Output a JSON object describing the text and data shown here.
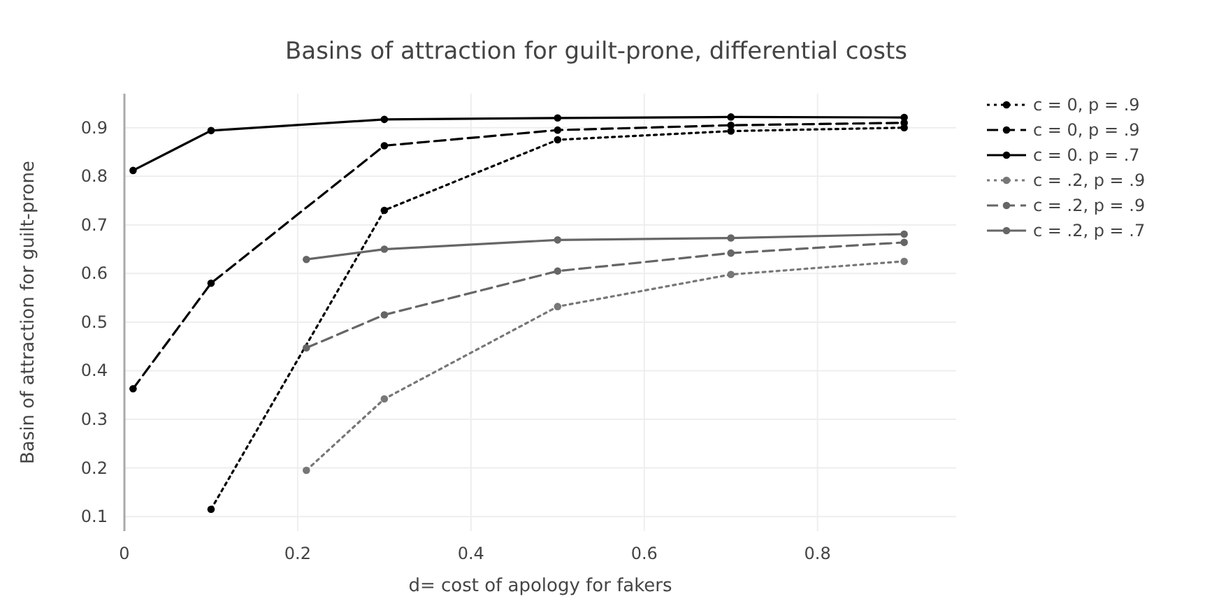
{
  "chart_data": {
    "type": "line",
    "title": "Basins of attraction for guilt-prone, differential costs",
    "xlabel": "d= cost of apology for fakers",
    "ylabel": "Basin of attraction for guilt-prone",
    "xlim": [
      0,
      0.96
    ],
    "xticks": [
      {
        "value": 0,
        "label": "0"
      },
      {
        "value": 0.2,
        "label": "0.2"
      },
      {
        "value": 0.4,
        "label": "0.4"
      },
      {
        "value": 0.6,
        "label": "0.6"
      },
      {
        "value": 0.8,
        "label": "0.8"
      }
    ],
    "ylim": [
      0.07,
      0.97
    ],
    "yticks": [
      {
        "value": 0.1,
        "label": "0.1"
      },
      {
        "value": 0.2,
        "label": "0.2"
      },
      {
        "value": 0.3,
        "label": "0.3"
      },
      {
        "value": 0.4,
        "label": "0.4"
      },
      {
        "value": 0.5,
        "label": "0.5"
      },
      {
        "value": 0.6,
        "label": "0.6"
      },
      {
        "value": 0.7,
        "label": "0.7"
      },
      {
        "value": 0.8,
        "label": "0.8"
      },
      {
        "value": 0.9,
        "label": "0.9"
      }
    ],
    "grid": true,
    "legend": "top right",
    "marker": "circle",
    "series": [
      {
        "name": "c = 0, p = .9",
        "color": "#000000",
        "line_style": "dotted",
        "x": [
          0.1,
          0.3,
          0.5,
          0.7,
          0.9
        ],
        "values": [
          0.115,
          0.73,
          0.875,
          0.893,
          0.9
        ]
      },
      {
        "name": "c = 0, p = .9",
        "color": "#000000",
        "line_style": "dashed",
        "x": [
          0.01,
          0.1,
          0.3,
          0.5,
          0.7,
          0.9
        ],
        "values": [
          0.363,
          0.58,
          0.863,
          0.895,
          0.905,
          0.91
        ]
      },
      {
        "name": "c = 0. p = .7",
        "color": "#000000",
        "line_style": "solid",
        "x": [
          0.01,
          0.1,
          0.3,
          0.5,
          0.7,
          0.9
        ],
        "values": [
          0.812,
          0.894,
          0.917,
          0.92,
          0.922,
          0.921
        ]
      },
      {
        "name": "c = .2, p = .9",
        "color": "#777777",
        "line_style": "dotted",
        "x": [
          0.21,
          0.3,
          0.5,
          0.7,
          0.9
        ],
        "values": [
          0.195,
          0.342,
          0.532,
          0.598,
          0.625
        ]
      },
      {
        "name": "c = .2, p = .9",
        "color": "#666666",
        "line_style": "dashed",
        "x": [
          0.21,
          0.3,
          0.5,
          0.7,
          0.9
        ],
        "values": [
          0.447,
          0.515,
          0.605,
          0.642,
          0.664
        ]
      },
      {
        "name": "c = .2, p = .7",
        "color": "#666666",
        "line_style": "solid",
        "x": [
          0.21,
          0.3,
          0.5,
          0.7,
          0.9
        ],
        "values": [
          0.629,
          0.65,
          0.669,
          0.673,
          0.681
        ]
      }
    ]
  }
}
